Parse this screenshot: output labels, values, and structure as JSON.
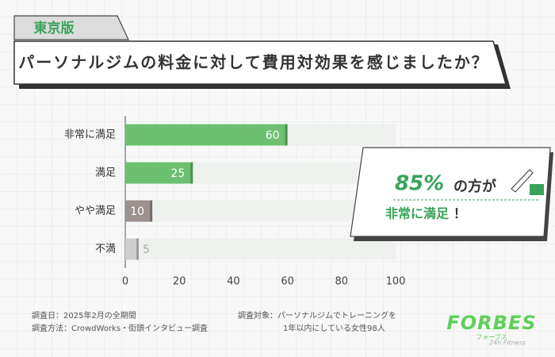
{
  "tag": "東京版",
  "chart_data": {
    "type": "hbar",
    "title": "パーソナルジムの料金に対して費用対効果を感じましたか？",
    "categories": [
      "非常に満足",
      "満足",
      "やや満足",
      "不満"
    ],
    "values": [
      60,
      25,
      10,
      5
    ],
    "colors": [
      "#6cc070",
      "#6cc070",
      "#9c918e",
      "#cfcfcf"
    ],
    "xlim": [
      0,
      100
    ],
    "xticks": [
      0,
      20,
      40,
      60,
      80,
      100
    ],
    "annotations": {
      "highlight": "85%",
      "highlight_suffix": "の方が",
      "line2": "非常に満足",
      "line2_mark": "！"
    }
  },
  "footnotes": {
    "date": "調査日：2025年2月の全期間",
    "method": "調査方法：CrowdWorks・街頭インタビュー調査",
    "target_1": "調査対象：パーソナルジムでトレーニングを",
    "target_2": "1年以内にしている女性98人"
  },
  "logo": {
    "name": "FORBES",
    "kana": "フォーブス",
    "sub": "24h Fitness"
  }
}
